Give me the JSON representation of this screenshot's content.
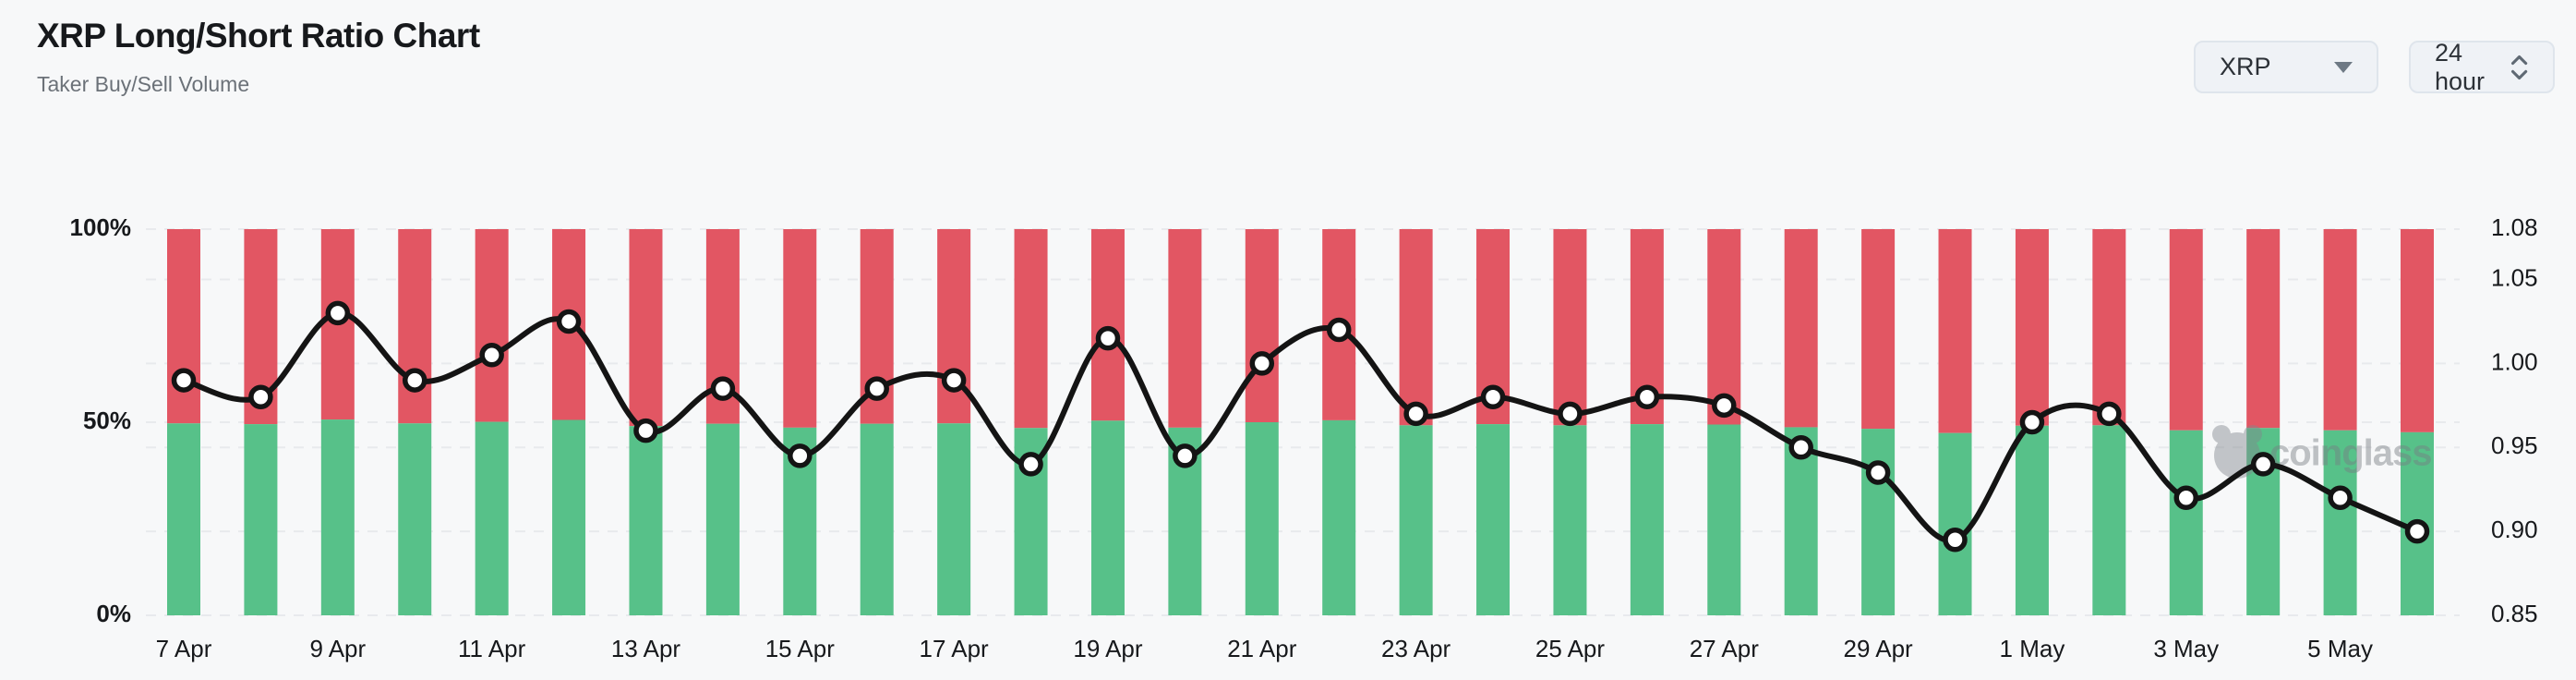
{
  "header": {
    "title": "XRP Long/Short Ratio Chart",
    "subtitle": "Taker Buy/Sell Volume"
  },
  "controls": {
    "symbol_select": {
      "value": "XRP"
    },
    "interval_select": {
      "value": "24 hour"
    }
  },
  "watermark": {
    "text": "coinglass"
  },
  "chart_data": {
    "type": "bar",
    "subtype": "stacked-percent-bars-with-ratio-line",
    "title": "XRP Long/Short Ratio Chart",
    "subtitle": "Taker Buy/Sell Volume",
    "categories": [
      "7 Apr",
      "8 Apr",
      "9 Apr",
      "10 Apr",
      "11 Apr",
      "12 Apr",
      "13 Apr",
      "14 Apr",
      "15 Apr",
      "16 Apr",
      "17 Apr",
      "18 Apr",
      "19 Apr",
      "20 Apr",
      "21 Apr",
      "22 Apr",
      "23 Apr",
      "24 Apr",
      "25 Apr",
      "26 Apr",
      "27 Apr",
      "28 Apr",
      "29 Apr",
      "30 Apr",
      "1 May",
      "2 May",
      "3 May",
      "4 May",
      "5 May",
      "6 May"
    ],
    "x_tick_labels": [
      "7 Apr",
      "9 Apr",
      "11 Apr",
      "13 Apr",
      "15 Apr",
      "17 Apr",
      "19 Apr",
      "21 Apr",
      "23 Apr",
      "25 Apr",
      "27 Apr",
      "29 Apr",
      "1 May",
      "3 May",
      "5 May"
    ],
    "series": [
      {
        "name": "Taker Buy Volume %",
        "role": "bar-bottom",
        "axis": "left",
        "color": "#57c189",
        "values": [
          49.7,
          49.5,
          50.7,
          49.7,
          50.1,
          50.6,
          49.0,
          49.6,
          48.6,
          49.6,
          49.7,
          48.5,
          50.4,
          48.6,
          50.0,
          50.5,
          49.2,
          49.5,
          49.2,
          49.5,
          49.4,
          48.7,
          48.3,
          47.2,
          49.1,
          49.2,
          47.9,
          48.5,
          47.9,
          47.4
        ]
      },
      {
        "name": "Taker Sell Volume %",
        "role": "bar-top",
        "axis": "left",
        "color": "#e25663",
        "note": "stacked remainder to 100%",
        "values": [
          50.3,
          50.5,
          49.3,
          50.3,
          49.9,
          49.4,
          51.0,
          50.4,
          51.4,
          50.4,
          50.3,
          51.5,
          49.6,
          51.4,
          50.0,
          49.5,
          50.8,
          50.5,
          50.8,
          50.5,
          50.6,
          51.3,
          51.7,
          52.8,
          50.9,
          50.8,
          52.1,
          51.5,
          52.1,
          52.6
        ]
      },
      {
        "name": "Long/Short Ratio",
        "role": "line",
        "axis": "right",
        "color": "#141414",
        "marker": {
          "fill": "#ffffff",
          "stroke": "#141414"
        },
        "values": [
          0.99,
          0.98,
          1.03,
          0.99,
          1.005,
          1.025,
          0.96,
          0.985,
          0.945,
          0.985,
          0.99,
          0.94,
          1.015,
          0.945,
          1.0,
          1.02,
          0.97,
          0.98,
          0.97,
          0.98,
          0.975,
          0.95,
          0.935,
          0.895,
          0.965,
          0.97,
          0.92,
          0.94,
          0.92,
          0.9
        ]
      }
    ],
    "left_axis": {
      "ticks": [
        "100%",
        "50%",
        "0%"
      ],
      "tick_values": [
        100,
        50,
        0
      ],
      "range": [
        0,
        100
      ]
    },
    "right_axis": {
      "ticks": [
        "1.08",
        "1.05",
        "1.00",
        "0.95",
        "0.90",
        "0.85"
      ],
      "tick_values": [
        1.08,
        1.05,
        1.0,
        0.95,
        0.9,
        0.85
      ],
      "range": [
        0.85,
        1.08
      ]
    },
    "grid": {
      "horizontal": "dashed",
      "extra_line_at_left_pct": 50,
      "color": "#e8eaed"
    },
    "legend_position": "none",
    "background": "#f7f8f9"
  }
}
